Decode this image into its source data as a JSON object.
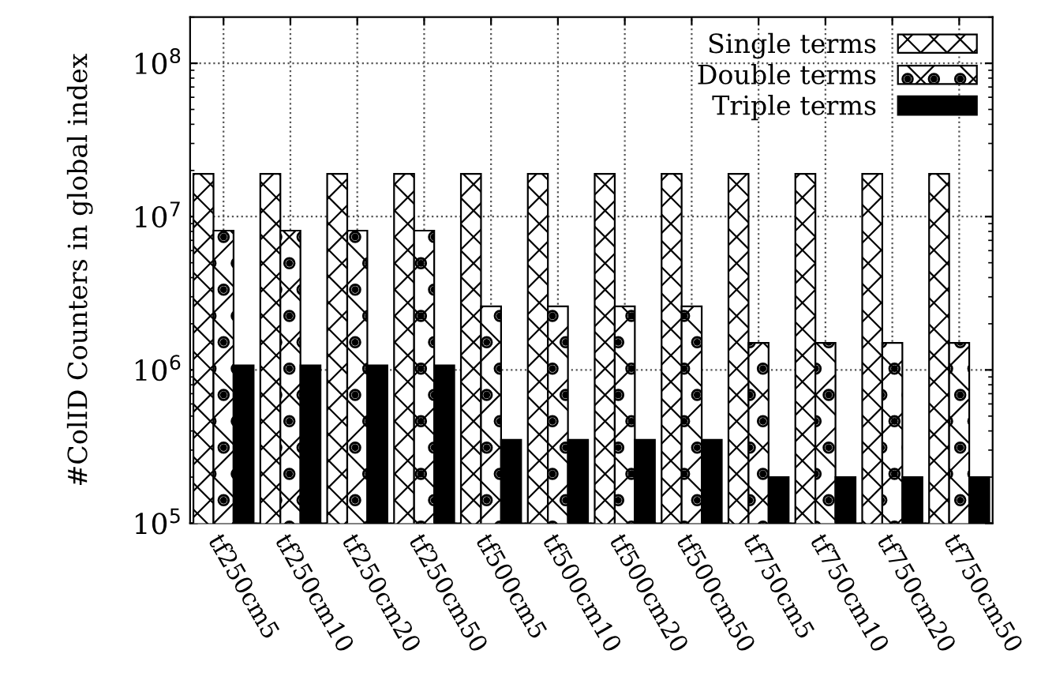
{
  "chart_data": {
    "type": "bar",
    "ylabel": "#ColID Counters in global index",
    "categories": [
      "tf250cm5",
      "tf250cm10",
      "tf250cm20",
      "tf250cm50",
      "tf500cm5",
      "tf500cm10",
      "tf500cm20",
      "tf500cm50",
      "tf750cm5",
      "tf750cm10",
      "tf750cm20",
      "tf750cm50"
    ],
    "series": [
      {
        "name": "Single terms",
        "color": "#000000",
        "values": [
          19000000,
          19000000,
          19000000,
          19000000,
          19000000,
          19000000,
          19000000,
          19000000,
          19000000,
          19000000,
          19000000,
          19000000
        ]
      },
      {
        "name": "Double terms",
        "color": "#000000",
        "values": [
          8100000,
          8100000,
          8100000,
          8100000,
          2600000,
          2600000,
          2600000,
          2600000,
          1500000,
          1500000,
          1500000,
          1500000
        ]
      },
      {
        "name": "Triple terms",
        "color": "#000000",
        "values": [
          1070000,
          1070000,
          1070000,
          1070000,
          350000,
          350000,
          350000,
          350000,
          200000,
          200000,
          200000,
          200000
        ]
      }
    ],
    "log": "y",
    "ylim": [
      100000,
      200000000
    ],
    "yticks": [
      {
        "value": 100000,
        "label": "10$^{5}$"
      },
      {
        "value": 1000000,
        "label": "10$^{6}$"
      },
      {
        "value": 10000000,
        "label": "10$^{7}$"
      },
      {
        "value": 100000000,
        "label": "10$^{8}$"
      }
    ],
    "grid": true,
    "legend": "top right"
  }
}
